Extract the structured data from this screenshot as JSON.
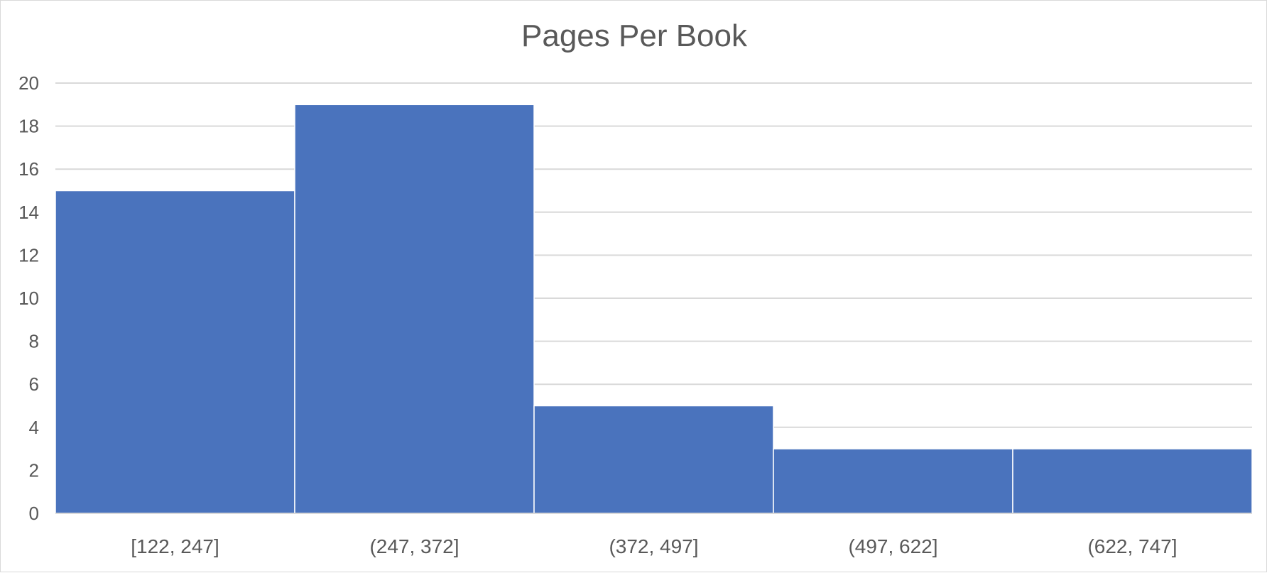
{
  "chart_data": {
    "type": "bar",
    "title": "Pages Per Book",
    "xlabel": "",
    "ylabel": "",
    "categories": [
      "[122, 247]",
      "(247, 372]",
      "(372, 497]",
      "(497, 622]",
      "(622, 747]"
    ],
    "values": [
      15,
      19,
      5,
      3,
      3
    ],
    "ylim": [
      0,
      20
    ],
    "yticks": [
      "0",
      "2",
      "4",
      "6",
      "8",
      "10",
      "12",
      "14",
      "16",
      "18",
      "20"
    ],
    "grid": true,
    "legend": "none",
    "bar_color": "#4a73bd",
    "histogram": true
  }
}
